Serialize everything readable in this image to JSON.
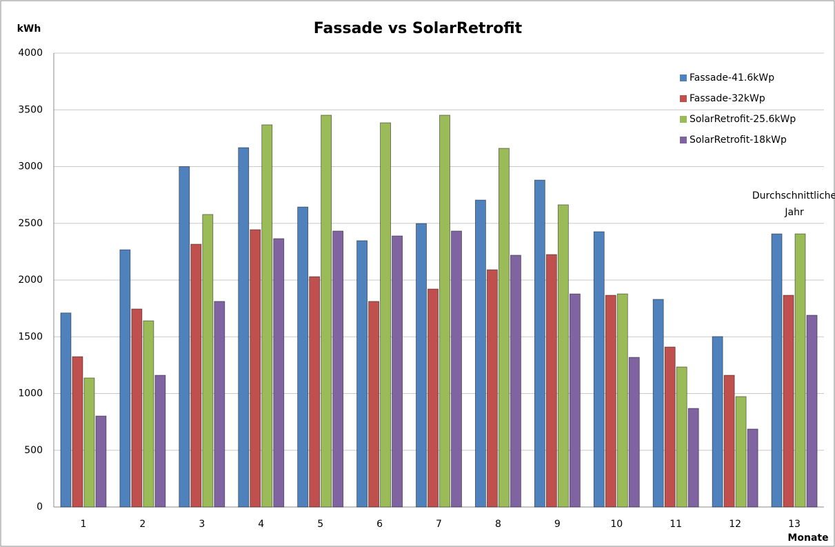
{
  "chart_data": {
    "type": "bar",
    "title": "Fassade vs SolarRetrofit",
    "y_label": "kWh",
    "x_label": "Monate",
    "annotation": [
      "Durchschnittliche",
      "Jahr"
    ],
    "categories": [
      "1",
      "2",
      "3",
      "4",
      "5",
      "6",
      "7",
      "8",
      "9",
      "10",
      "11",
      "12",
      "13"
    ],
    "series": [
      {
        "name": "Fassade-41.6kWp",
        "color": "#4f81bd",
        "values": [
          1710,
          2267,
          3000,
          3167,
          2644,
          2347,
          2498,
          2705,
          2881,
          2426,
          1830,
          1502,
          2407
        ]
      },
      {
        "name": "Fassade-32kWp",
        "color": "#c0504d",
        "values": [
          1325,
          1745,
          2316,
          2444,
          2030,
          1812,
          1921,
          2091,
          2225,
          1866,
          1410,
          1161,
          1866
        ]
      },
      {
        "name": "SolarRetrofit-25.6kWp",
        "color": "#9bbb59",
        "values": [
          1137,
          1641,
          2578,
          3368,
          3453,
          3386,
          3453,
          3161,
          2663,
          1878,
          1234,
          973,
          2407
        ]
      },
      {
        "name": "SolarRetrofit-18kWp",
        "color": "#8064a2",
        "values": [
          802,
          1161,
          1812,
          2365,
          2432,
          2389,
          2432,
          2219,
          1878,
          1319,
          869,
          687,
          1690
        ]
      }
    ],
    "ylim": [
      0,
      4000
    ],
    "yticks": [
      0,
      500,
      1000,
      1500,
      2000,
      2500,
      3000,
      3500,
      4000
    ],
    "grid": true,
    "legend": "top-right"
  }
}
